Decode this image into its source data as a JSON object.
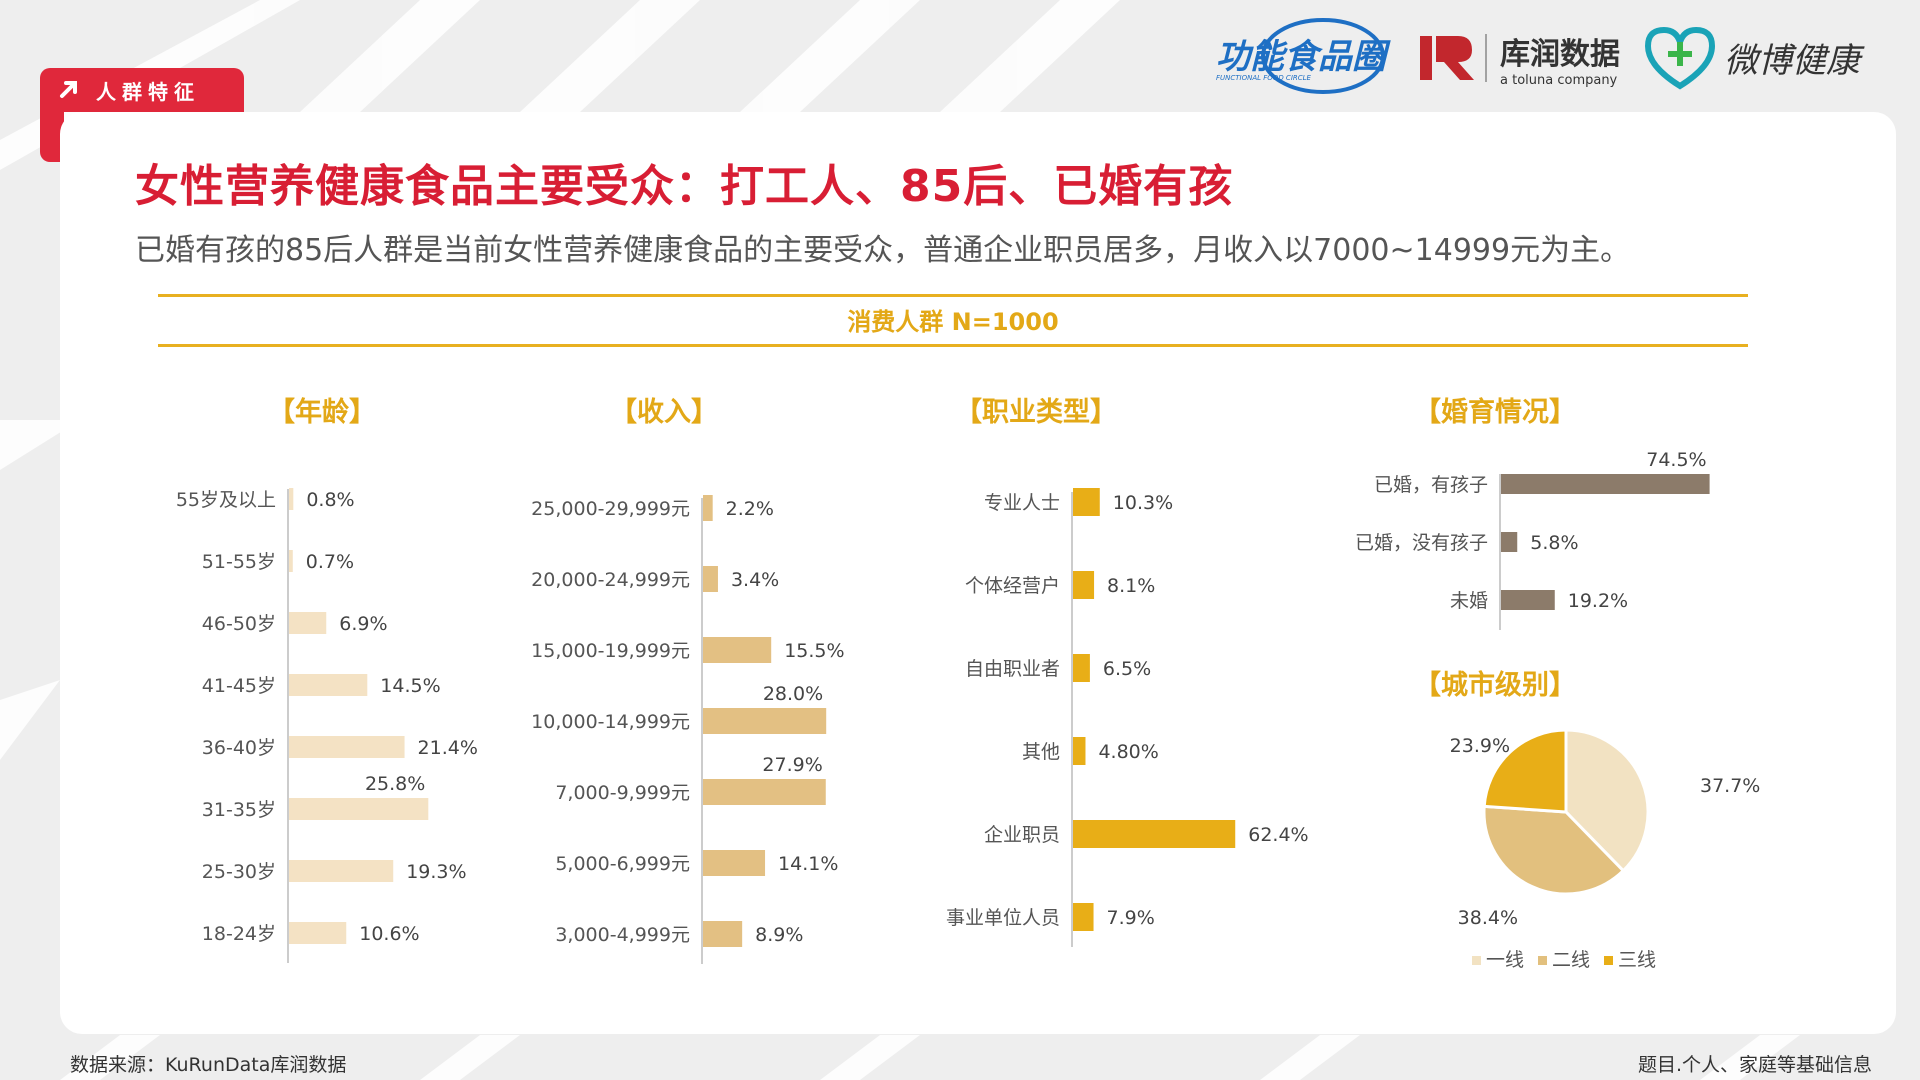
{
  "tag": {
    "label": "人群特征"
  },
  "logos": {
    "brand1": "功能食品圈",
    "brand1_sub": "FUNCTIONAL FOOD CIRCLE",
    "brand2": "库润数据",
    "brand2_sub": "a toluna company",
    "brand3": "微博健康"
  },
  "title": "女性营养健康食品主要受众：打工人、85后、已婚有孩",
  "subtitle": "已婚有孩的85后人群是当前女性营养健康食品的主要受众，普通企业职员居多，月收入以7000~14999元为主。",
  "band_label": "消费人群 N=1000",
  "colors": {
    "accent_red": "#d81e34",
    "gold": "#e3a817",
    "age_bar": "#f4e2c4",
    "income_bar": "#e3c083",
    "job_bar": "#e8ae17",
    "marriage_bar": "#8c7b6a"
  },
  "footer": {
    "source": "数据来源：KuRunData库润数据",
    "note": "题目.个人、家庭等基础信息"
  },
  "chart_data": [
    {
      "type": "bar",
      "orientation": "horizontal",
      "title": "【年龄】",
      "categories": [
        "55岁及以上",
        "51-55岁",
        "46-50岁",
        "41-45岁",
        "36-40岁",
        "31-35岁",
        "25-30岁",
        "18-24岁"
      ],
      "values": [
        0.8,
        0.7,
        6.9,
        14.5,
        21.4,
        25.8,
        19.3,
        10.6
      ],
      "labels": [
        "0.8%",
        "0.7%",
        "6.9%",
        "14.5%",
        "21.4%",
        "25.8%",
        "19.3%",
        "10.6%"
      ]
    },
    {
      "type": "bar",
      "orientation": "horizontal",
      "title": "【收入】",
      "categories": [
        "25,000-29,999元",
        "20,000-24,999元",
        "15,000-19,999元",
        "10,000-14,999元",
        "7,000-9,999元",
        "5,000-6,999元",
        "3,000-4,999元"
      ],
      "values": [
        2.2,
        3.4,
        15.5,
        28.0,
        27.9,
        14.1,
        8.9
      ],
      "labels": [
        "2.2%",
        "3.4%",
        "15.5%",
        "28.0%",
        "27.9%",
        "14.1%",
        "8.9%"
      ]
    },
    {
      "type": "bar",
      "orientation": "horizontal",
      "title": "【职业类型】",
      "categories": [
        "专业人士",
        "个体经营户",
        "自由职业者",
        "其他",
        "企业职员",
        "事业单位人员"
      ],
      "values": [
        10.3,
        8.1,
        6.5,
        4.8,
        62.4,
        7.9
      ],
      "labels": [
        "10.3%",
        "8.1%",
        "6.5%",
        "4.80%",
        "62.4%",
        "7.9%"
      ]
    },
    {
      "type": "bar",
      "orientation": "horizontal",
      "title": "【婚育情况】",
      "categories": [
        "已婚，有孩子",
        "已婚，没有孩子",
        "未婚"
      ],
      "values": [
        74.5,
        5.8,
        19.2
      ],
      "labels": [
        "74.5%",
        "5.8%",
        "19.2%"
      ]
    },
    {
      "type": "pie",
      "title": "【城市级别】",
      "categories": [
        "一线",
        "二线",
        "三线"
      ],
      "values": [
        37.7,
        38.4,
        23.9
      ],
      "labels": [
        "37.7%",
        "38.4%",
        "23.9%"
      ],
      "colors": [
        "#f2e2c2",
        "#e2c07e",
        "#e8ae17"
      ],
      "legend": "bottom"
    }
  ]
}
